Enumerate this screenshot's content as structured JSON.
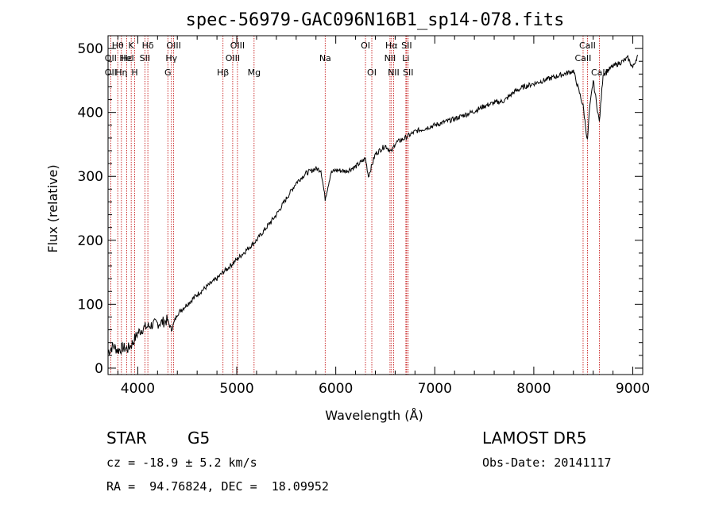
{
  "chart_data": {
    "type": "line",
    "title": "spec-56979-GAC096N16B1_sp14-078.fits",
    "xlabel": "Wavelength (Å)",
    "ylabel": "Flux (relative)",
    "xlim": [
      3700,
      9100
    ],
    "ylim": [
      -10,
      520
    ],
    "xticks": [
      4000,
      5000,
      6000,
      7000,
      8000,
      9000
    ],
    "yticks": [
      0,
      100,
      200,
      300,
      400,
      500
    ],
    "grid": false,
    "series": [
      {
        "x": [
          3700,
          3750,
          3800,
          3850,
          3900,
          3950,
          4000,
          4050,
          4100,
          4150,
          4200,
          4250,
          4300,
          4340,
          4400,
          4500,
          4600,
          4700,
          4800,
          4861,
          4900,
          5000,
          5100,
          5200,
          5300,
          5400,
          5500,
          5600,
          5700,
          5800,
          5850,
          5893,
          5950,
          6000,
          6100,
          6200,
          6300,
          6330,
          6400,
          6500,
          6563,
          6600,
          6700,
          6800,
          6900,
          7000,
          7100,
          7200,
          7300,
          7400,
          7500,
          7600,
          7700,
          7800,
          7900,
          8000,
          8100,
          8200,
          8300,
          8400,
          8498,
          8542,
          8560,
          8600,
          8662,
          8700,
          8800,
          8900,
          8950,
          9000,
          9050
        ],
        "y": [
          25,
          35,
          28,
          32,
          30,
          40,
          55,
          62,
          65,
          68,
          70,
          72,
          75,
          60,
          85,
          100,
          115,
          128,
          140,
          150,
          155,
          170,
          185,
          200,
          220,
          240,
          265,
          290,
          305,
          312,
          310,
          265,
          305,
          310,
          308,
          315,
          328,
          300,
          335,
          348,
          338,
          352,
          360,
          370,
          375,
          380,
          385,
          390,
          396,
          402,
          410,
          415,
          418,
          432,
          440,
          445,
          450,
          455,
          460,
          465,
          410,
          355,
          400,
          450,
          385,
          460,
          472,
          480,
          485,
          470,
          490
        ]
      }
    ],
    "annotations": [
      {
        "label": "Hθ",
        "wl": 3798,
        "row": 1
      },
      {
        "label": "OII",
        "wl": 3727,
        "row": 2
      },
      {
        "label": "OII",
        "wl": 3727,
        "row": 3
      },
      {
        "label": "Hε",
        "wl": 3889,
        "row": 2
      },
      {
        "label": "Hη",
        "wl": 3835,
        "row": 3
      },
      {
        "label": "K",
        "wl": 3934,
        "row": 1
      },
      {
        "label": "HeI",
        "wl": 3889,
        "row": 2
      },
      {
        "label": "H",
        "wl": 3969,
        "row": 3
      },
      {
        "label": "Hδ",
        "wl": 4102,
        "row": 1
      },
      {
        "label": "SII",
        "wl": 4072,
        "row": 2
      },
      {
        "label": "OIII",
        "wl": 4363,
        "row": 1
      },
      {
        "label": "Hγ",
        "wl": 4340,
        "row": 2
      },
      {
        "label": "G",
        "wl": 4304,
        "row": 3
      },
      {
        "label": "Hβ",
        "wl": 4861,
        "row": 3
      },
      {
        "label": "OIII",
        "wl": 5007,
        "row": 1
      },
      {
        "label": "OIII",
        "wl": 4959,
        "row": 2
      },
      {
        "label": "Mg",
        "wl": 5175,
        "row": 3
      },
      {
        "label": "Na",
        "wl": 5893,
        "row": 2
      },
      {
        "label": "OI",
        "wl": 6300,
        "row": 1
      },
      {
        "label": "OI",
        "wl": 6364,
        "row": 3
      },
      {
        "label": "Hα",
        "wl": 6563,
        "row": 1
      },
      {
        "label": "SII",
        "wl": 6716,
        "row": 1
      },
      {
        "label": "NII",
        "wl": 6548,
        "row": 2
      },
      {
        "label": "Li",
        "wl": 6708,
        "row": 2
      },
      {
        "label": "NII",
        "wl": 6584,
        "row": 3
      },
      {
        "label": "SII",
        "wl": 6731,
        "row": 3
      },
      {
        "label": "CaII",
        "wl": 8542,
        "row": 1
      },
      {
        "label": "CaII",
        "wl": 8498,
        "row": 2
      },
      {
        "label": "CaII",
        "wl": 8662,
        "row": 3
      }
    ],
    "marker_lines": [
      3727,
      3798,
      3835,
      3889,
      3934,
      3969,
      4072,
      4102,
      4304,
      4340,
      4363,
      4861,
      4959,
      5007,
      5175,
      5893,
      6300,
      6364,
      6548,
      6563,
      6584,
      6708,
      6716,
      6731,
      8498,
      8542,
      8662
    ],
    "colors": {
      "line_marker": "#c00000",
      "spectrum": "#000000"
    }
  },
  "info": {
    "object_class": "STAR",
    "subclass": "G5",
    "survey": "LAMOST DR5",
    "cz": "cz = -18.9 ± 5.2 km/s",
    "obs_date": "Obs-Date: 20141117",
    "coords": "RA =  94.76824, DEC =  18.09952"
  }
}
